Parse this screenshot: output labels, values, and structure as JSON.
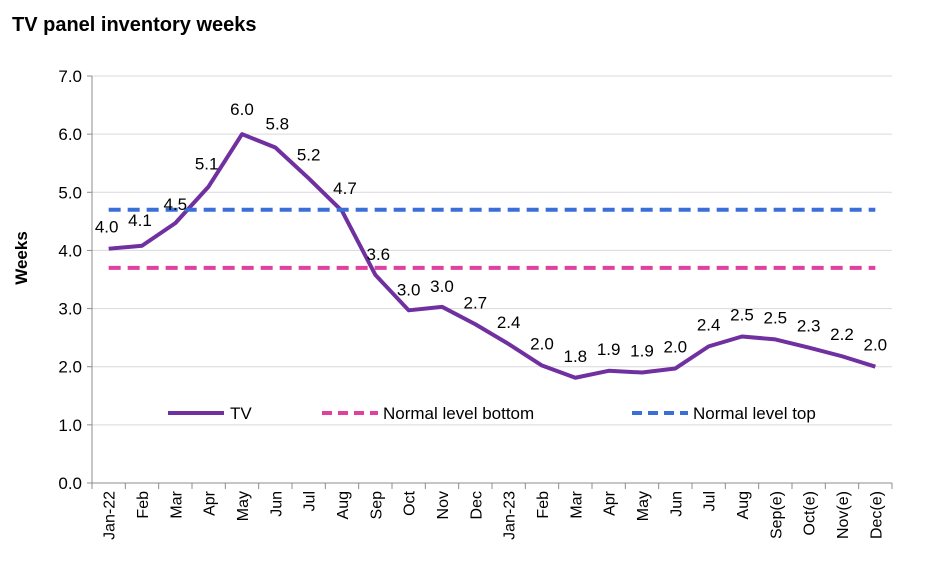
{
  "chart_data": {
    "type": "line",
    "title": "TV panel inventory weeks",
    "xlabel": "",
    "ylabel": "Weeks",
    "ylim": [
      0,
      7
    ],
    "yticks": [
      "0.0",
      "1.0",
      "2.0",
      "3.0",
      "4.0",
      "5.0",
      "6.0",
      "7.0"
    ],
    "grid": true,
    "legend_position": "inside-bottom",
    "categories": [
      "Jan-22",
      "Feb",
      "Mar",
      "Apr",
      "May",
      "Jun",
      "Jul",
      "Aug",
      "Sep",
      "Oct",
      "Nov",
      "Dec",
      "Jan-23",
      "Feb",
      "Mar",
      "Apr",
      "May",
      "Jun",
      "Jul",
      "Aug",
      "Sep(e)",
      "Oct(e)",
      "Nov(e)",
      "Dec(e)"
    ],
    "series": [
      {
        "name": "TV",
        "color": "#7030A0",
        "style": "solid",
        "values": [
          4.03,
          4.08,
          4.47,
          5.1,
          6.0,
          5.77,
          5.24,
          4.68,
          3.58,
          2.97,
          3.03,
          2.73,
          2.39,
          2.02,
          1.81,
          1.93,
          1.9,
          1.97,
          2.35,
          2.52,
          2.47,
          2.33,
          2.18,
          2.0
        ],
        "labels": [
          "4.0",
          "4.1",
          "4.5",
          "5.1",
          "6.0",
          "5.8",
          "5.2",
          "4.7",
          "3.6",
          "3.0",
          "3.0",
          "2.7",
          "2.4",
          "2.0",
          "1.8",
          "1.9",
          "1.9",
          "2.0",
          "2.4",
          "2.5",
          "2.5",
          "2.3",
          "2.2",
          "2.0"
        ]
      },
      {
        "name": "Normal level bottom",
        "color": "#E040A0",
        "style": "dashed",
        "values": [
          3.7,
          3.7,
          3.7,
          3.7,
          3.7,
          3.7,
          3.7,
          3.7,
          3.7,
          3.7,
          3.7,
          3.7,
          3.7,
          3.7,
          3.7,
          3.7,
          3.7,
          3.7,
          3.7,
          3.7,
          3.7,
          3.7,
          3.7,
          3.7
        ]
      },
      {
        "name": "Normal level top",
        "color": "#3A6FD8",
        "style": "dashed",
        "values": [
          4.7,
          4.7,
          4.7,
          4.7,
          4.7,
          4.7,
          4.7,
          4.7,
          4.7,
          4.7,
          4.7,
          4.7,
          4.7,
          4.7,
          4.7,
          4.7,
          4.7,
          4.7,
          4.7,
          4.7,
          4.7,
          4.7,
          4.7,
          4.7
        ]
      }
    ]
  }
}
